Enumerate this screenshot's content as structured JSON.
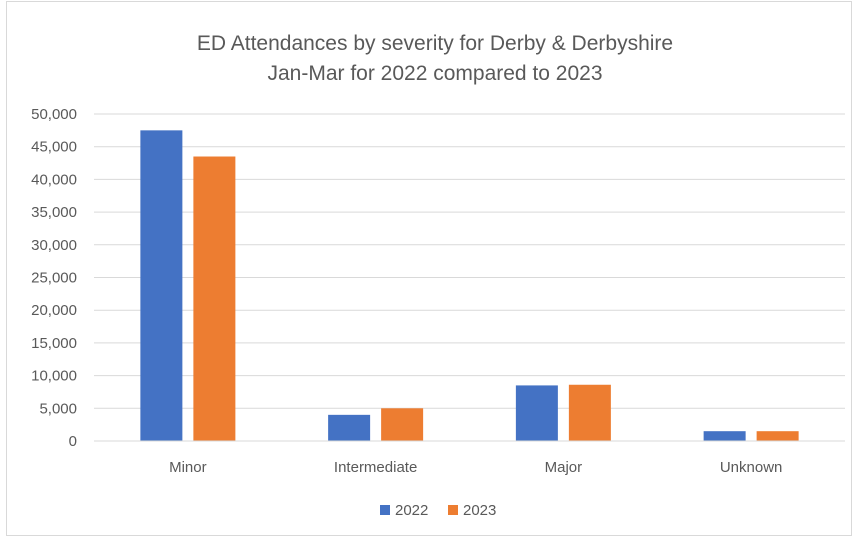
{
  "chart_data": {
    "type": "bar",
    "title": "ED Attendances by severity for Derby & Derbyshire",
    "subtitle": "Jan-Mar for 2022 compared to 2023",
    "xlabel": "",
    "ylabel": "",
    "categories": [
      "Minor",
      "Intermediate",
      "Major",
      "Unknown"
    ],
    "series": [
      {
        "name": "2022",
        "color": "#4472C4",
        "values": [
          47500,
          4000,
          8500,
          1500
        ]
      },
      {
        "name": "2023",
        "color": "#ED7D31",
        "values": [
          43500,
          5000,
          8600,
          1500
        ]
      }
    ],
    "ylim": [
      0,
      50000
    ],
    "yticks": [
      0,
      5000,
      10000,
      15000,
      20000,
      25000,
      30000,
      35000,
      40000,
      45000,
      50000
    ],
    "ytick_labels": [
      "0",
      "5,000",
      "10,000",
      "15,000",
      "20,000",
      "25,000",
      "30,000",
      "35,000",
      "40,000",
      "45,000",
      "50,000"
    ],
    "grid": true,
    "legend_position": "bottom"
  }
}
